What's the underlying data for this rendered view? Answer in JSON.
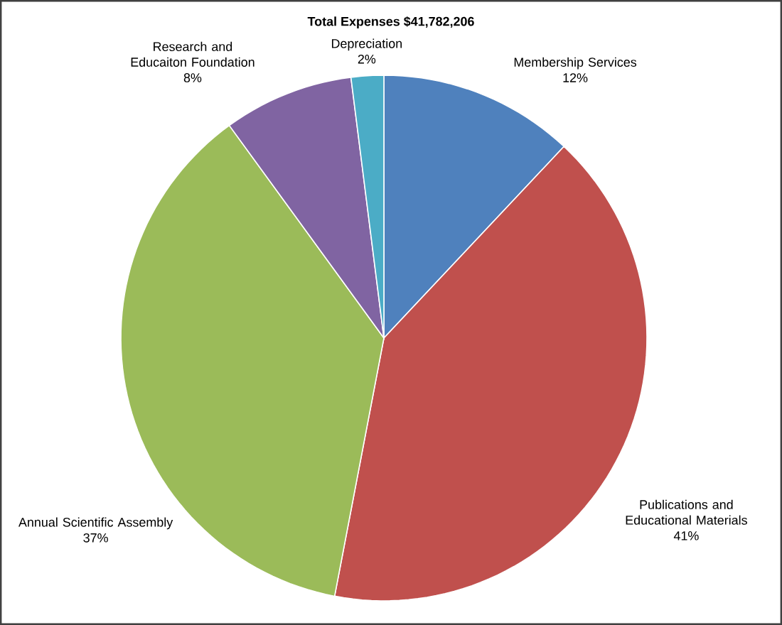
{
  "chart_data": {
    "type": "pie",
    "title": "Total Expenses $41,782,206",
    "categories": [
      "Membership Services",
      "Publications and Educational Materials",
      "Annual Scientific Assembly",
      "Research and Educaiton Foundation",
      "Depreciation"
    ],
    "values": [
      12,
      41,
      37,
      8,
      2
    ],
    "value_labels": [
      "12%",
      "41%",
      "37%",
      "8%",
      "2%"
    ],
    "colors": [
      "#4f81bd",
      "#c0504d",
      "#9bbb59",
      "#8064a2",
      "#4bacc6"
    ]
  }
}
